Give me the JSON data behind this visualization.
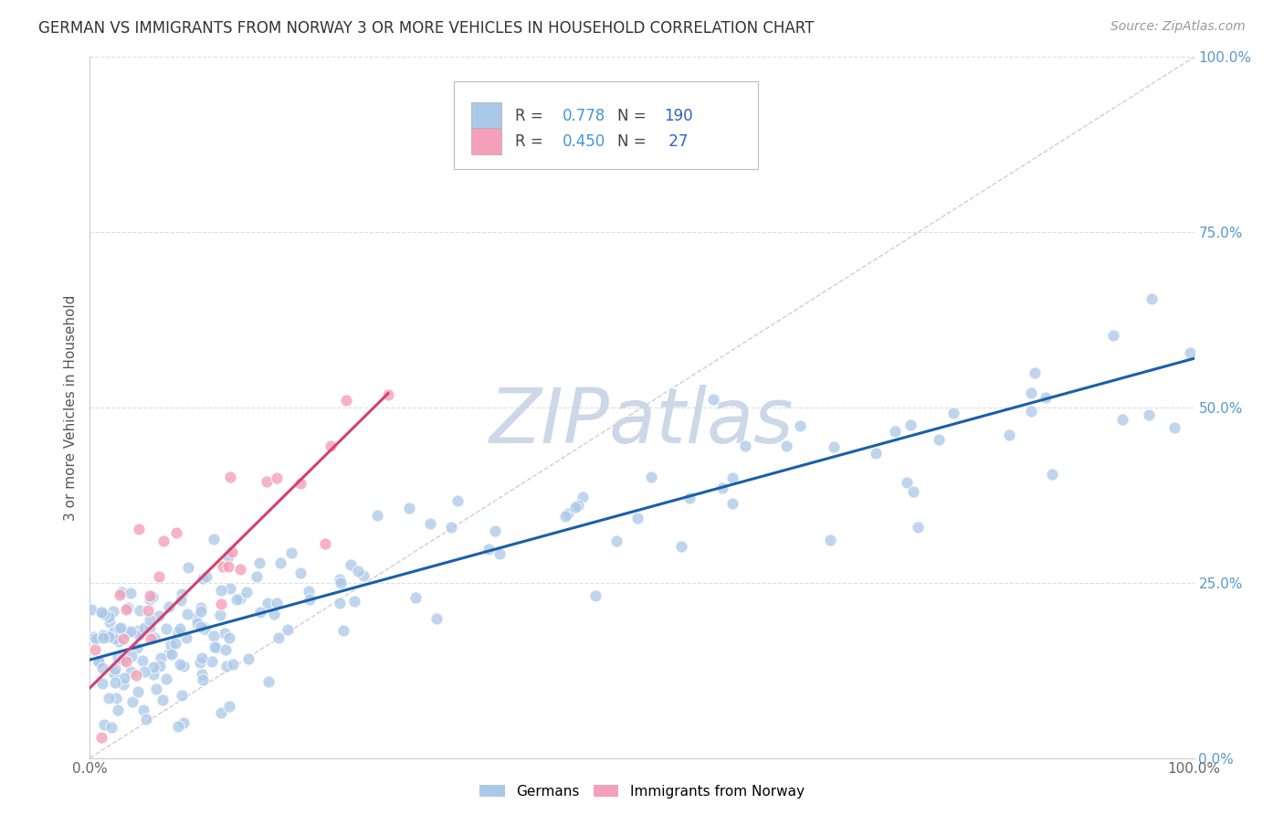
{
  "title": "GERMAN VS IMMIGRANTS FROM NORWAY 3 OR MORE VEHICLES IN HOUSEHOLD CORRELATION CHART",
  "source": "Source: ZipAtlas.com",
  "ylabel": "3 or more Vehicles in Household",
  "xlim": [
    0,
    1.0
  ],
  "ylim": [
    0,
    1.0
  ],
  "xtick_positions": [
    0.0,
    1.0
  ],
  "xtick_labels": [
    "0.0%",
    "100.0%"
  ],
  "ytick_vals": [
    0.0,
    0.25,
    0.5,
    0.75,
    1.0
  ],
  "ytick_labels_right": [
    "0.0%",
    "25.0%",
    "50.0%",
    "75.0%",
    "100.0%"
  ],
  "watermark": "ZIPatlas",
  "blue_color": "#aac8e8",
  "pink_color": "#f4a0b8",
  "blue_line_color": "#1a5fa8",
  "pink_line_color": "#d44070",
  "diagonal_color": "#d8c8d8",
  "bg_color": "#ffffff",
  "grid_color": "#dddddd",
  "title_fontsize": 12,
  "source_fontsize": 10,
  "watermark_color": "#ccd8e8",
  "watermark_fontsize": 60,
  "blue_line": {
    "x0": 0.0,
    "y0": 0.14,
    "x1": 1.0,
    "y1": 0.57
  },
  "pink_line": {
    "x0": 0.0,
    "y0": 0.1,
    "x1": 0.27,
    "y1": 0.52
  },
  "diagonal_line": {
    "x0": 0.0,
    "y0": 0.0,
    "x1": 1.0,
    "y1": 1.0
  },
  "legend_box": {
    "R1": "0.778",
    "N1": "190",
    "R2": "0.450",
    "N2": "27",
    "blue_patch": "#aac8e8",
    "pink_patch": "#f4a0b8",
    "R_color": "#4496d8",
    "N_color": "#3060c0",
    "text_color": "#444444"
  }
}
